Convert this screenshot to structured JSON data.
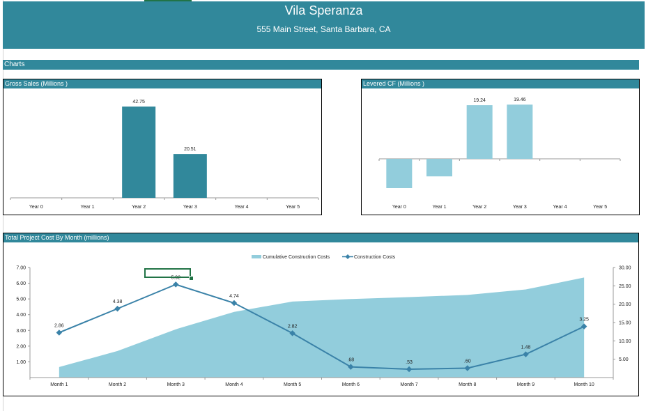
{
  "header": {
    "title": "Vila Speranza",
    "address": "555 Main Street, Santa Barbara, CA"
  },
  "section": {
    "label": "Charts"
  },
  "colors": {
    "header": "#31889b",
    "bar_dark": "#31889b",
    "bar_light": "#92cddc",
    "line": "#3a82a8",
    "selection": "#217346"
  },
  "chart_data": [
    {
      "type": "bar",
      "title": "Gross Sales (Millions )",
      "categories": [
        "Year 0",
        "Year 1",
        "Year 2",
        "Year 3",
        "Year 4",
        "Year 5"
      ],
      "values": [
        0,
        0,
        42.75,
        20.51,
        0,
        0
      ],
      "labels": [
        "",
        "",
        "42.75",
        "20.51",
        "",
        ""
      ],
      "ylim": [
        0,
        45
      ]
    },
    {
      "type": "bar",
      "title": "Levered CF (Millions )",
      "categories": [
        "Year 0",
        "Year 1",
        "Year 2",
        "Year 3",
        "Year 4",
        "Year 5"
      ],
      "values": [
        -10.5,
        -6.3,
        19.24,
        19.46,
        0,
        0
      ],
      "labels": [
        "",
        "",
        "19.24",
        "19.46",
        "",
        ""
      ],
      "ylim": [
        -12,
        20
      ]
    },
    {
      "type": "area+line",
      "title": "Total Project Cost By Month (millions)",
      "categories": [
        "Month 1",
        "Month 2",
        "Month 3",
        "Month 4",
        "Month 5",
        "Month 6",
        "Month 7",
        "Month 8",
        "Month 9",
        "Month 10"
      ],
      "series": [
        {
          "name": "Cumulative Construction Costs",
          "axis": "right",
          "values": [
            2.86,
            7.24,
            13.16,
            17.9,
            20.72,
            21.4,
            21.93,
            22.53,
            24.01,
            27.26
          ]
        },
        {
          "name": "Construction Costs",
          "axis": "left",
          "values": [
            2.86,
            4.38,
            5.92,
            4.74,
            2.82,
            0.68,
            0.53,
            0.6,
            1.48,
            3.25
          ],
          "labels": [
            "2.86",
            "4.38",
            "5.92",
            "4.74",
            "2.82",
            ".68",
            ".53",
            ".60",
            "1.48",
            "3.25"
          ]
        }
      ],
      "y_left": {
        "ticks": [
          "1.00",
          "2.00",
          "3.00",
          "4.00",
          "5.00",
          "6.00",
          "7.00"
        ],
        "ylim": [
          0,
          7
        ]
      },
      "y_right": {
        "ticks": [
          "5.00",
          "10.00",
          "15.00",
          "20.00",
          "25.00",
          "30.00"
        ],
        "ylim": [
          0,
          30
        ]
      },
      "legend": "top"
    }
  ]
}
